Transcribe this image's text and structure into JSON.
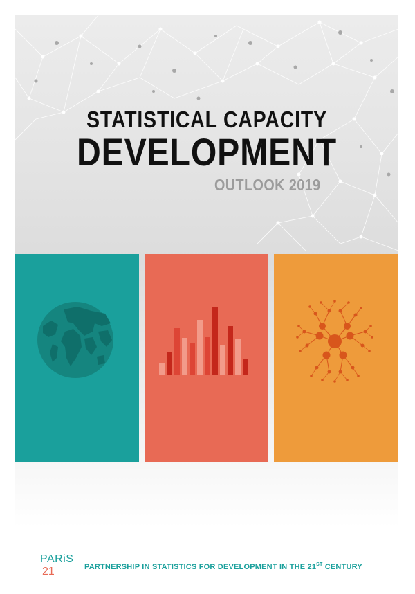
{
  "cover": {
    "title_line1": "STATISTICAL CAPACITY",
    "title_line2": "DEVELOPMENT",
    "title_line3": "OUTLOOK 2019"
  },
  "panels": [
    {
      "icon": "globe-icon",
      "color": "#1aa09c"
    },
    {
      "icon": "bar-chart-icon",
      "color": "#e86a55"
    },
    {
      "icon": "network-icon",
      "color": "#ee9b3b"
    }
  ],
  "footer": {
    "logo_top": "PARiS",
    "logo_bottom": "21",
    "tagline_main": "PARTNERSHIP IN STATISTICS FOR DEVELOPMENT IN THE 21",
    "tagline_sup": "ST",
    "tagline_end": " CENTURY"
  },
  "colors": {
    "teal": "#1aa09c",
    "coral": "#e86a55",
    "orange": "#ee9b3b",
    "title": "#111111",
    "subtitle": "#9c9c9c"
  }
}
